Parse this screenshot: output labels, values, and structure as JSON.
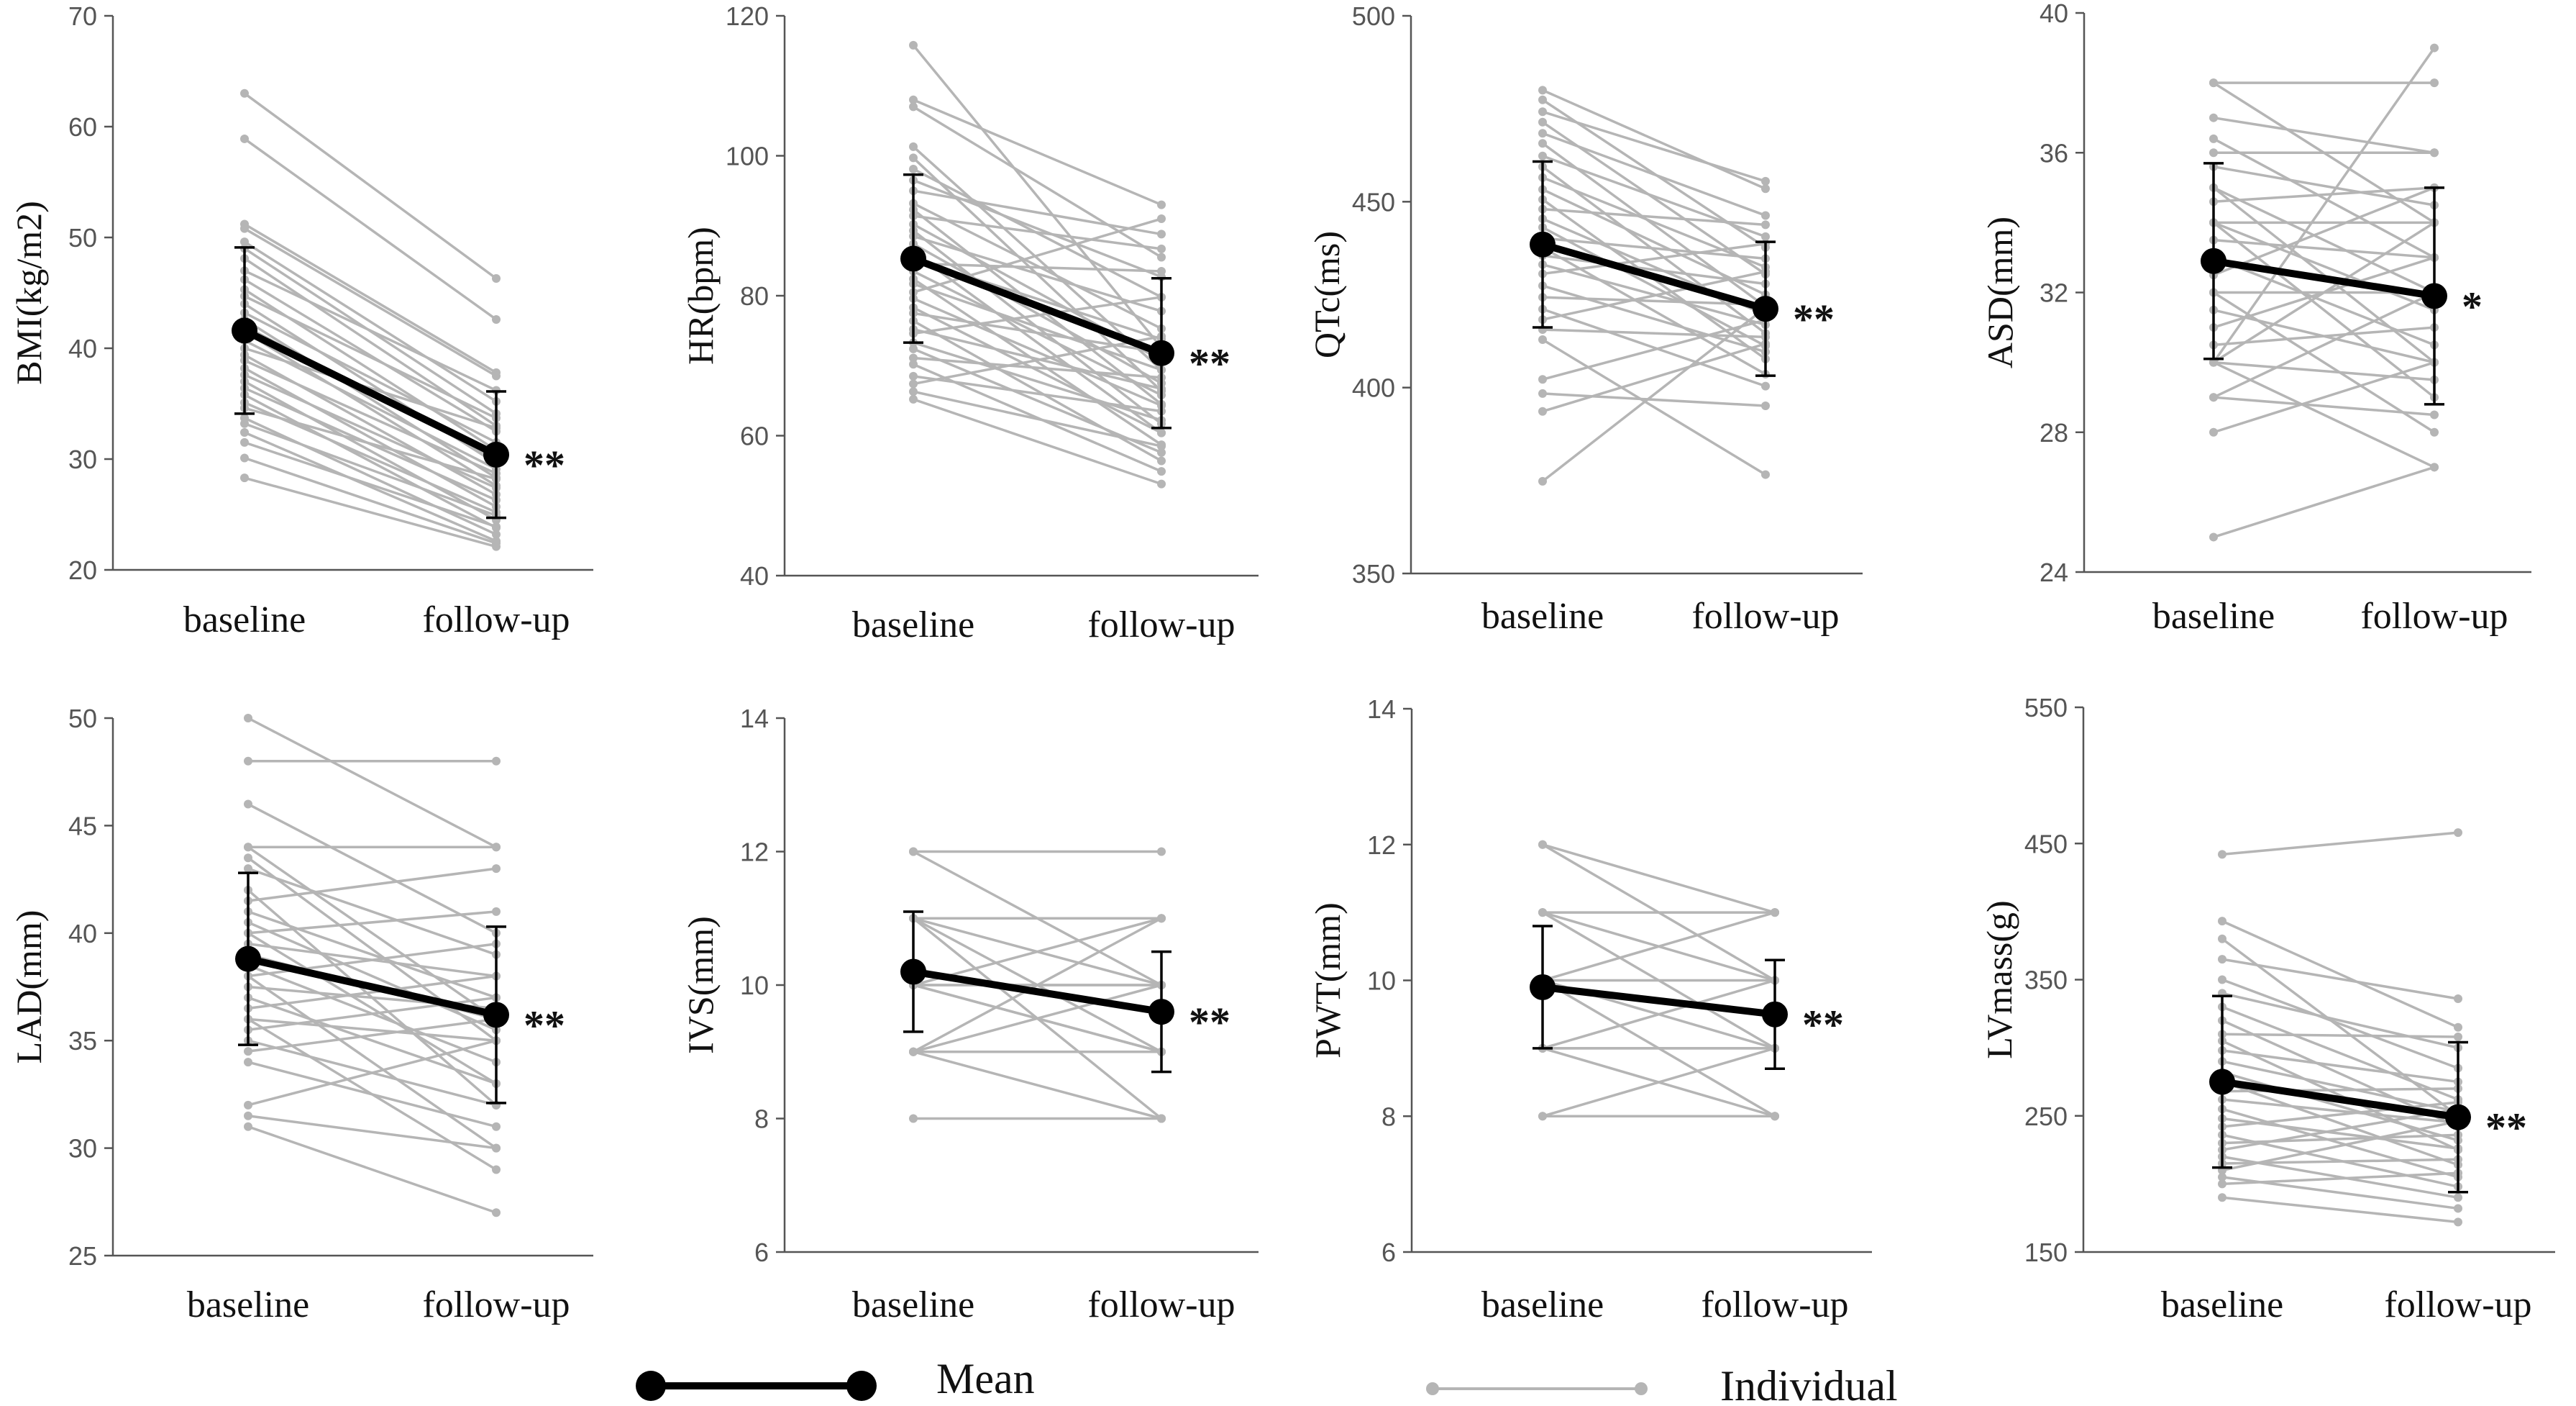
{
  "figure": {
    "legend": {
      "mean_label": "Mean",
      "individual_label": "Individual"
    },
    "colors": {
      "mean": "#000000",
      "individual": "#b5b5b5",
      "axis": "#555555",
      "text": "#111111"
    }
  },
  "chart_data": [
    {
      "type": "line",
      "id": "bmi",
      "ylabel": "BMI(kg/m2)",
      "categories": [
        "baseline",
        "follow-up"
      ],
      "ylim": [
        20,
        70
      ],
      "yticks": [
        20,
        30,
        40,
        50,
        60,
        70
      ],
      "mean": [
        41.6,
        30.4
      ],
      "sd": [
        7.5,
        5.7
      ],
      "significance": "**",
      "individuals": [
        [
          63,
          46.3
        ],
        [
          58.9,
          42.6
        ],
        [
          51.2,
          37.8
        ],
        [
          50.8,
          37.5
        ],
        [
          49.6,
          35.2
        ],
        [
          49,
          34.1
        ],
        [
          48.1,
          33
        ],
        [
          47,
          36.2
        ],
        [
          46.2,
          32.5
        ],
        [
          45.3,
          30.8
        ],
        [
          44.7,
          33.7
        ],
        [
          44,
          29.6
        ],
        [
          43.2,
          31.5
        ],
        [
          42.6,
          28.3
        ],
        [
          42,
          30
        ],
        [
          41.5,
          27.6
        ],
        [
          40.7,
          29.1
        ],
        [
          40,
          32.8
        ],
        [
          39.4,
          26.8
        ],
        [
          38.9,
          28.7
        ],
        [
          38.2,
          25.7
        ],
        [
          37.6,
          27.4
        ],
        [
          37,
          24.5
        ],
        [
          36.4,
          26.3
        ],
        [
          35.8,
          23.8
        ],
        [
          35.1,
          25.2
        ],
        [
          34.6,
          28.2
        ],
        [
          33.7,
          23.2
        ],
        [
          33.2,
          24.9
        ],
        [
          32.4,
          22.6
        ],
        [
          31.5,
          23.9
        ],
        [
          30.1,
          22.4
        ],
        [
          28.3,
          22.1
        ]
      ]
    },
    {
      "type": "line",
      "id": "hr",
      "ylabel": "HR(bpm)",
      "categories": [
        "baseline",
        "follow-up"
      ],
      "ylim": [
        40,
        120
      ],
      "yticks": [
        40,
        60,
        80,
        100,
        120
      ],
      "mean": [
        85.3,
        71.8
      ],
      "sd": [
        12,
        10.7
      ],
      "significance": "**",
      "individuals": [
        [
          115.8,
          72.6
        ],
        [
          108,
          93
        ],
        [
          107,
          85.5
        ],
        [
          101.3,
          69.4
        ],
        [
          99.7,
          66.4
        ],
        [
          98.1,
          79.8
        ],
        [
          96.5,
          82.7
        ],
        [
          95,
          88.8
        ],
        [
          93.2,
          75.3
        ],
        [
          92.3,
          64.5
        ],
        [
          91.4,
          86.7
        ],
        [
          90.2,
          70.8
        ],
        [
          89.3,
          61.7
        ],
        [
          88.5,
          77.8
        ],
        [
          87.4,
          67.5
        ],
        [
          86.2,
          60.4
        ],
        [
          85.3,
          73.8
        ],
        [
          84.6,
          83.5
        ],
        [
          83.5,
          65.8
        ],
        [
          82.4,
          58.7
        ],
        [
          81.7,
          69.4
        ],
        [
          80.5,
          91
        ],
        [
          79.6,
          64.3
        ],
        [
          78.3,
          60.4
        ],
        [
          77.5,
          71.9
        ],
        [
          76.4,
          56.4
        ],
        [
          75.2,
          66.7
        ],
        [
          74.6,
          79.8
        ],
        [
          73.3,
          62.2
        ],
        [
          72.4,
          57.6
        ],
        [
          71.1,
          68.3
        ],
        [
          70.2,
          54.9
        ],
        [
          68.5,
          63.5
        ],
        [
          67.4,
          74.2
        ],
        [
          66.3,
          58.5
        ],
        [
          65.2,
          53.1
        ]
      ]
    },
    {
      "type": "line",
      "id": "qtc",
      "ylabel": "QTc(ms)",
      "categories": [
        "baseline",
        "follow-up"
      ],
      "ylim": [
        350,
        500
      ],
      "yticks": [
        350,
        400,
        450,
        500
      ],
      "mean": [
        438.5,
        421.2
      ],
      "sd": [
        22.3,
        18
      ],
      "significance": "**",
      "individuals": [
        [
          480,
          453.5
        ],
        [
          477.4,
          437.7
        ],
        [
          474.2,
          455.5
        ],
        [
          471.4,
          430.5
        ],
        [
          468.4,
          446.3
        ],
        [
          465.7,
          421.8
        ],
        [
          462.3,
          440.6
        ],
        [
          459.4,
          414.6
        ],
        [
          456.5,
          432.4
        ],
        [
          453.3,
          425
        ],
        [
          450.6,
          407.7
        ],
        [
          448,
          443.8
        ],
        [
          445.4,
          419.6
        ],
        [
          443.1,
          411.2
        ],
        [
          440.2,
          434.7
        ],
        [
          437.7,
          403.6
        ],
        [
          435.5,
          427.9
        ],
        [
          433.1,
          416.9
        ],
        [
          430.6,
          438.7
        ],
        [
          427.4,
          409.6
        ],
        [
          424.3,
          422.3
        ],
        [
          421.1,
          400.4
        ],
        [
          418.3,
          431.2
        ],
        [
          415.6,
          413.6
        ],
        [
          412.9,
          376.6
        ],
        [
          402.2,
          418.2
        ],
        [
          398.4,
          395.1
        ],
        [
          393.6,
          411.8
        ],
        [
          374.8,
          421.5
        ]
      ]
    },
    {
      "type": "line",
      "id": "asd",
      "ylabel": "ASD(mm)",
      "categories": [
        "baseline",
        "follow-up"
      ],
      "ylim": [
        24,
        40
      ],
      "yticks": [
        24,
        28,
        32,
        36,
        40
      ],
      "mean": [
        32.9,
        31.9
      ],
      "sd": [
        2.8,
        3.1
      ],
      "significance": "*",
      "individuals": [
        [
          38,
          38
        ],
        [
          38,
          34
        ],
        [
          37,
          36
        ],
        [
          36.4,
          33
        ],
        [
          36,
          36
        ],
        [
          35.6,
          34.5
        ],
        [
          35,
          32
        ],
        [
          35,
          30
        ],
        [
          34.6,
          35
        ],
        [
          34,
          34
        ],
        [
          34,
          31.5
        ],
        [
          34,
          29
        ],
        [
          33.5,
          33
        ],
        [
          33,
          30.5
        ],
        [
          32.5,
          35
        ],
        [
          32,
          32
        ],
        [
          32,
          28
        ],
        [
          31.5,
          30
        ],
        [
          31,
          33
        ],
        [
          30.5,
          31
        ],
        [
          30,
          34
        ],
        [
          30,
          39
        ],
        [
          30,
          27
        ],
        [
          30,
          29.5
        ],
        [
          29,
          32
        ],
        [
          29,
          28.5
        ],
        [
          28,
          30
        ],
        [
          25,
          27
        ]
      ]
    },
    {
      "type": "line",
      "id": "lad",
      "ylabel": "LAD(mm)",
      "categories": [
        "baseline",
        "follow-up"
      ],
      "ylim": [
        25,
        50
      ],
      "yticks": [
        25,
        30,
        35,
        40,
        45,
        50
      ],
      "mean": [
        38.8,
        36.2
      ],
      "sd": [
        4,
        4.1
      ],
      "significance": "**",
      "individuals": [
        [
          50,
          44
        ],
        [
          48,
          48
        ],
        [
          46,
          40
        ],
        [
          44,
          36
        ],
        [
          44,
          44
        ],
        [
          43.5,
          35
        ],
        [
          43,
          39
        ],
        [
          42,
          32
        ],
        [
          41.5,
          43
        ],
        [
          41,
          37
        ],
        [
          40.5,
          35.5
        ],
        [
          40,
          41
        ],
        [
          40,
          33
        ],
        [
          39.5,
          38
        ],
        [
          39,
          36
        ],
        [
          38.5,
          34
        ],
        [
          38,
          39.5
        ],
        [
          38,
          30
        ],
        [
          37.5,
          36.5
        ],
        [
          37,
          33
        ],
        [
          36.5,
          38
        ],
        [
          36,
          35
        ],
        [
          36,
          29
        ],
        [
          35.5,
          37
        ],
        [
          35,
          32
        ],
        [
          34.5,
          36
        ],
        [
          34,
          31
        ],
        [
          32,
          35
        ],
        [
          31.5,
          30
        ],
        [
          31,
          27
        ]
      ]
    },
    {
      "type": "line",
      "id": "ivs",
      "ylabel": "IVS(mm)",
      "categories": [
        "baseline",
        "follow-up"
      ],
      "ylim": [
        6,
        14
      ],
      "yticks": [
        6,
        8,
        10,
        12,
        14
      ],
      "mean": [
        10.2,
        9.6
      ],
      "sd": [
        0.9,
        0.9
      ],
      "significance": "**",
      "individuals": [
        [
          12,
          12
        ],
        [
          12,
          10
        ],
        [
          11,
          11
        ],
        [
          11,
          10
        ],
        [
          11,
          9
        ],
        [
          11,
          8
        ],
        [
          10,
          11
        ],
        [
          10,
          10
        ],
        [
          10,
          10
        ],
        [
          10,
          9
        ],
        [
          10,
          9
        ],
        [
          9,
          10
        ],
        [
          9,
          9
        ],
        [
          9,
          8
        ],
        [
          9,
          11
        ],
        [
          8,
          8
        ]
      ]
    },
    {
      "type": "line",
      "id": "pwt",
      "ylabel": "PWT(mm)",
      "categories": [
        "baseline",
        "follow-up"
      ],
      "ylim": [
        6,
        14
      ],
      "yticks": [
        6,
        8,
        10,
        12,
        14
      ],
      "mean": [
        9.9,
        9.5
      ],
      "sd": [
        0.9,
        0.8
      ],
      "significance": "**",
      "individuals": [
        [
          12,
          11
        ],
        [
          12,
          10
        ],
        [
          11,
          11
        ],
        [
          11,
          10
        ],
        [
          11,
          9
        ],
        [
          10,
          10
        ],
        [
          10,
          9
        ],
        [
          10,
          11
        ],
        [
          10,
          8
        ],
        [
          9,
          9
        ],
        [
          9,
          10
        ],
        [
          9,
          9
        ],
        [
          9,
          8
        ],
        [
          8,
          9
        ],
        [
          8,
          8
        ]
      ]
    },
    {
      "type": "line",
      "id": "lvmass",
      "ylabel": "LVmass(g)",
      "categories": [
        "baseline",
        "follow-up"
      ],
      "ylim": [
        150,
        550
      ],
      "yticks": [
        150,
        250,
        350,
        450,
        550
      ],
      "mean": [
        275,
        249
      ],
      "sd": [
        63,
        55
      ],
      "significance": "**",
      "individuals": [
        [
          442,
          458
        ],
        [
          393,
          315
        ],
        [
          380,
          250
        ],
        [
          365,
          336
        ],
        [
          350,
          285
        ],
        [
          340,
          300
        ],
        [
          330,
          262
        ],
        [
          320,
          242
        ],
        [
          310,
          308
        ],
        [
          305,
          225
        ],
        [
          298,
          275
        ],
        [
          290,
          253
        ],
        [
          282,
          232
        ],
        [
          275,
          214
        ],
        [
          268,
          270
        ],
        [
          262,
          245
        ],
        [
          255,
          205
        ],
        [
          248,
          226
        ],
        [
          242,
          260
        ],
        [
          236,
          198
        ],
        [
          230,
          236
        ],
        [
          225,
          255
        ],
        [
          220,
          190
        ],
        [
          215,
          218
        ],
        [
          210,
          246
        ],
        [
          205,
          182
        ],
        [
          200,
          208
        ],
        [
          190,
          172
        ]
      ]
    }
  ]
}
